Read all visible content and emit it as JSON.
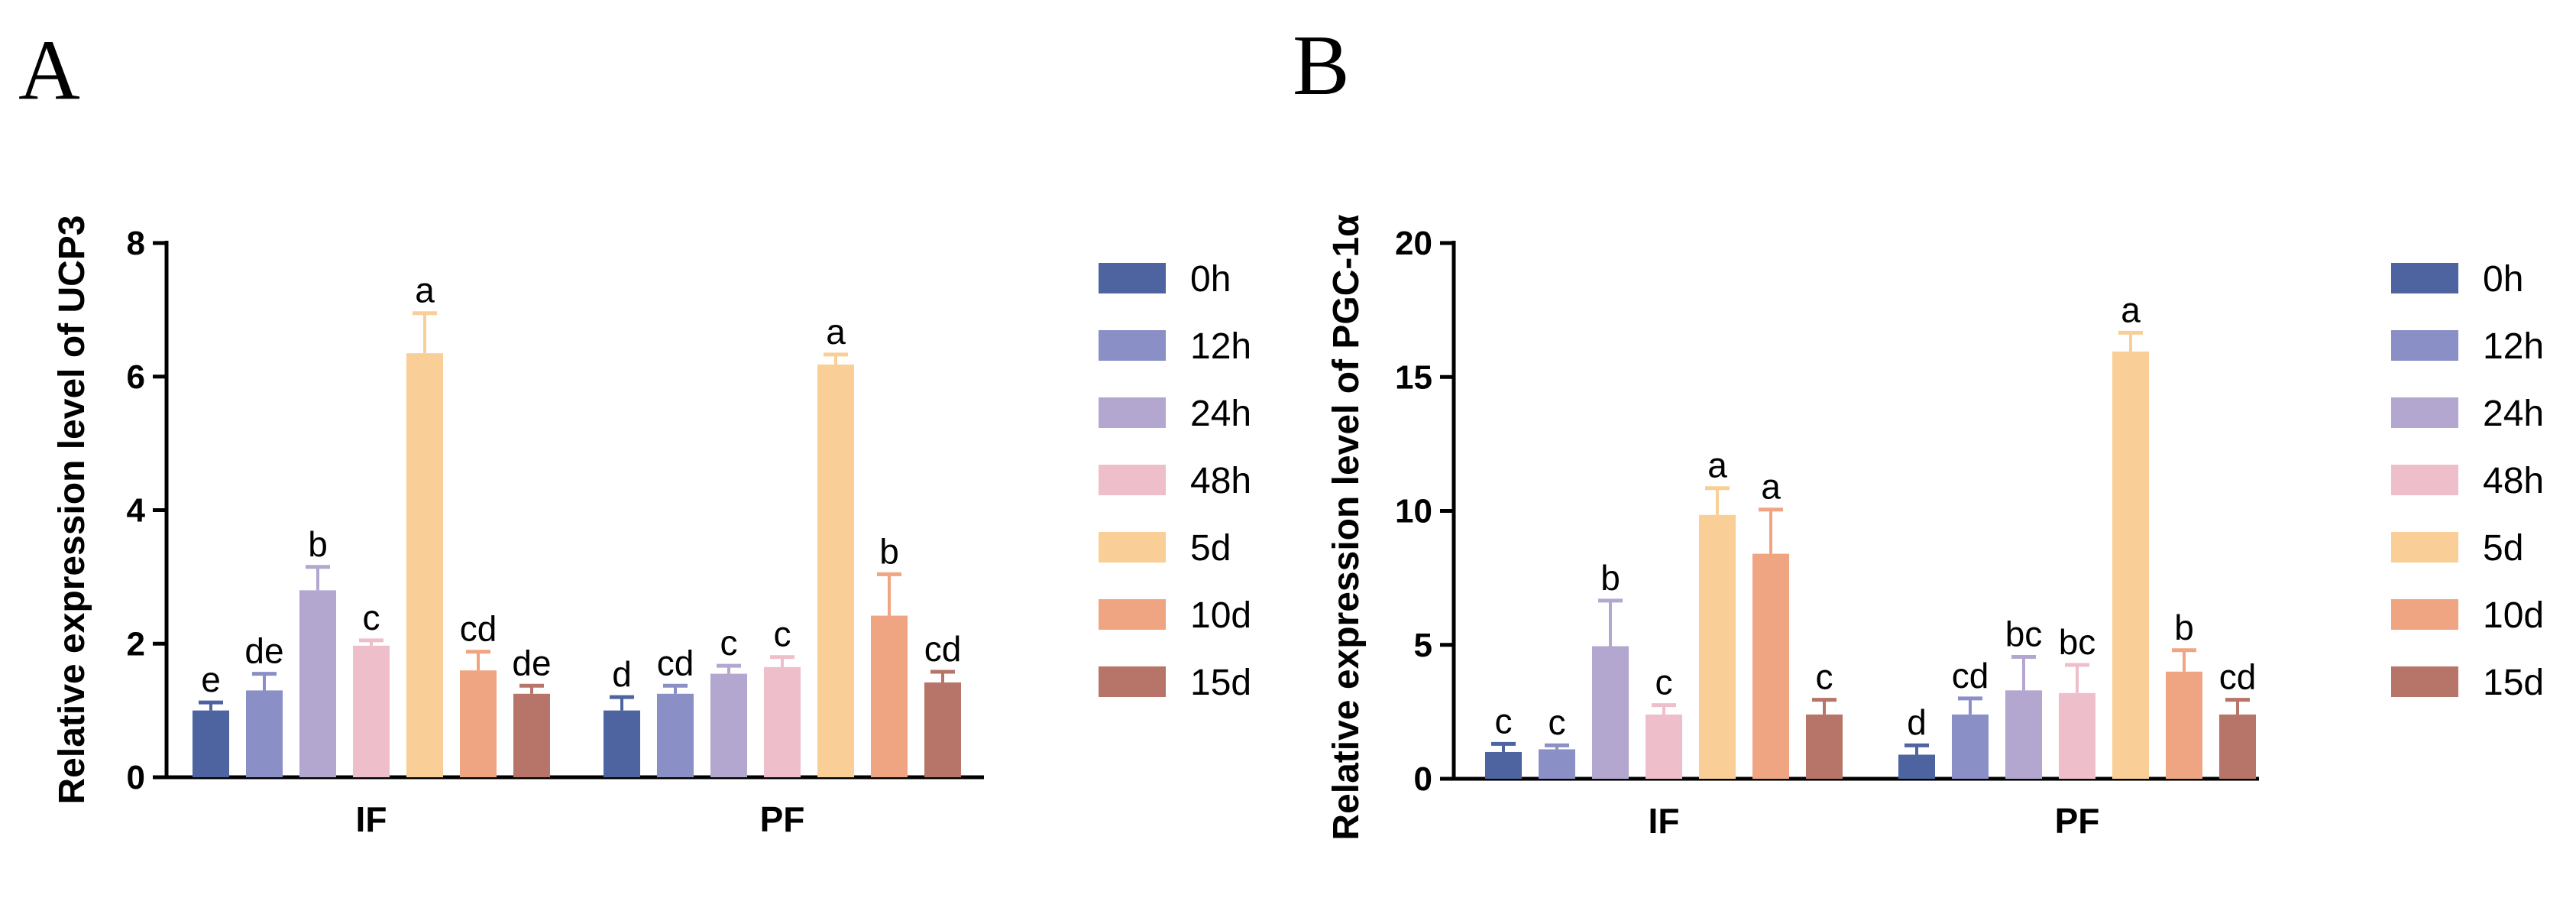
{
  "series_colors": [
    "#4e64a0",
    "#8a8fc6",
    "#b3a7d0",
    "#eebfca",
    "#f9cf97",
    "#efa582",
    "#b77469"
  ],
  "chart_data": [
    {
      "type": "bar",
      "panel": "A",
      "ylabel": "Relative expression level of UCP3",
      "ylim": [
        0,
        8
      ],
      "yticks": [
        0,
        2,
        4,
        6,
        8
      ],
      "categories": [
        "IF",
        "PF"
      ],
      "series": [
        {
          "name": "0h",
          "values": [
            1.0,
            1.0
          ],
          "errors": [
            0.12,
            0.2
          ],
          "labels": [
            "e",
            "d"
          ]
        },
        {
          "name": "12h",
          "values": [
            1.3,
            1.25
          ],
          "errors": [
            0.25,
            0.12
          ],
          "labels": [
            "de",
            "cd"
          ]
        },
        {
          "name": "24h",
          "values": [
            2.8,
            1.55
          ],
          "errors": [
            0.35,
            0.12
          ],
          "labels": [
            "b",
            "c"
          ]
        },
        {
          "name": "48h",
          "values": [
            1.97,
            1.65
          ],
          "errors": [
            0.08,
            0.15
          ],
          "labels": [
            "c",
            "c"
          ]
        },
        {
          "name": "5d",
          "values": [
            6.35,
            6.18
          ],
          "errors": [
            0.6,
            0.15
          ],
          "labels": [
            "a",
            "a"
          ]
        },
        {
          "name": "10d",
          "values": [
            1.6,
            2.42
          ],
          "errors": [
            0.28,
            0.62
          ],
          "labels": [
            "cd",
            "b"
          ]
        },
        {
          "name": "15d",
          "values": [
            1.25,
            1.42
          ],
          "errors": [
            0.12,
            0.16
          ],
          "labels": [
            "de",
            "cd"
          ]
        }
      ],
      "legend": [
        "0h",
        "12h",
        "24h",
        "48h",
        "5d",
        "10d",
        "15d"
      ]
    },
    {
      "type": "bar",
      "panel": "B",
      "ylabel": "Relative expression level of PGC-1α",
      "ylim": [
        0,
        20
      ],
      "yticks": [
        0,
        5,
        10,
        15,
        20
      ],
      "categories": [
        "IF",
        "PF"
      ],
      "series": [
        {
          "name": "0h",
          "values": [
            1.0,
            0.9
          ],
          "errors": [
            0.3,
            0.35
          ],
          "labels": [
            "c",
            "d"
          ]
        },
        {
          "name": "12h",
          "values": [
            1.1,
            2.4
          ],
          "errors": [
            0.15,
            0.6
          ],
          "labels": [
            "c",
            "cd"
          ]
        },
        {
          "name": "24h",
          "values": [
            4.95,
            3.3
          ],
          "errors": [
            1.7,
            1.25
          ],
          "labels": [
            "b",
            "bc"
          ]
        },
        {
          "name": "48h",
          "values": [
            2.4,
            3.2
          ],
          "errors": [
            0.35,
            1.05
          ],
          "labels": [
            "c",
            "bc"
          ]
        },
        {
          "name": "5d",
          "values": [
            9.85,
            15.95
          ],
          "errors": [
            1.0,
            0.7
          ],
          "labels": [
            "a",
            "a"
          ]
        },
        {
          "name": "10d",
          "values": [
            8.4,
            4.0
          ],
          "errors": [
            1.65,
            0.8
          ],
          "labels": [
            "a",
            "b"
          ]
        },
        {
          "name": "15d",
          "values": [
            2.4,
            2.4
          ],
          "errors": [
            0.55,
            0.55
          ],
          "labels": [
            "c",
            "cd"
          ]
        }
      ],
      "legend": [
        "0h",
        "12h",
        "24h",
        "48h",
        "5d",
        "10d",
        "15d"
      ]
    }
  ],
  "panels": {
    "a_letter": "A",
    "b_letter": "B"
  }
}
